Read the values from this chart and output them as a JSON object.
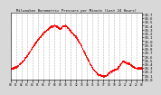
{
  "title": "Milwaukee Barometric Pressure per Minute (Last 24 Hours)",
  "background_color": "#d8d8d8",
  "plot_bg_color": "#ffffff",
  "line_color": "red",
  "markersize": 1.2,
  "ylim": [
    29.0,
    30.75
  ],
  "ytick_values": [
    29.0,
    29.1,
    29.2,
    29.3,
    29.4,
    29.5,
    29.6,
    29.7,
    29.8,
    29.9,
    30.0,
    30.1,
    30.2,
    30.3,
    30.4,
    30.5,
    30.6,
    30.7
  ],
  "ytick_labels": [
    "29.0",
    "29.1",
    "29.2",
    "29.3",
    "29.4",
    "29.5",
    "29.6",
    "29.7",
    "29.8",
    "29.9",
    "30.0",
    "30.1",
    "30.2",
    "30.3",
    "30.4",
    "30.5",
    "30.6",
    "30.7"
  ],
  "grid_color": "#aaaaaa",
  "num_points": 1440,
  "x_num_ticks": 25,
  "xlim": [
    0,
    1440
  ],
  "curve_segments": [
    {
      "t": 0,
      "v": 29.28
    },
    {
      "t": 60,
      "v": 29.32
    },
    {
      "t": 120,
      "v": 29.45
    },
    {
      "t": 180,
      "v": 29.62
    },
    {
      "t": 240,
      "v": 29.85
    },
    {
      "t": 300,
      "v": 30.05
    },
    {
      "t": 360,
      "v": 30.22
    },
    {
      "t": 420,
      "v": 30.35
    },
    {
      "t": 480,
      "v": 30.42
    },
    {
      "t": 510,
      "v": 30.38
    },
    {
      "t": 540,
      "v": 30.32
    },
    {
      "t": 570,
      "v": 30.38
    },
    {
      "t": 600,
      "v": 30.4
    },
    {
      "t": 630,
      "v": 30.35
    },
    {
      "t": 660,
      "v": 30.25
    },
    {
      "t": 720,
      "v": 30.1
    },
    {
      "t": 780,
      "v": 29.85
    },
    {
      "t": 840,
      "v": 29.55
    },
    {
      "t": 900,
      "v": 29.28
    },
    {
      "t": 960,
      "v": 29.12
    },
    {
      "t": 1020,
      "v": 29.08
    },
    {
      "t": 1050,
      "v": 29.1
    },
    {
      "t": 1080,
      "v": 29.18
    },
    {
      "t": 1110,
      "v": 29.22
    },
    {
      "t": 1140,
      "v": 29.25
    },
    {
      "t": 1170,
      "v": 29.28
    },
    {
      "t": 1200,
      "v": 29.38
    },
    {
      "t": 1230,
      "v": 29.48
    },
    {
      "t": 1260,
      "v": 29.44
    },
    {
      "t": 1290,
      "v": 29.42
    },
    {
      "t": 1320,
      "v": 29.38
    },
    {
      "t": 1350,
      "v": 29.32
    },
    {
      "t": 1380,
      "v": 29.3
    },
    {
      "t": 1440,
      "v": 29.28
    }
  ]
}
